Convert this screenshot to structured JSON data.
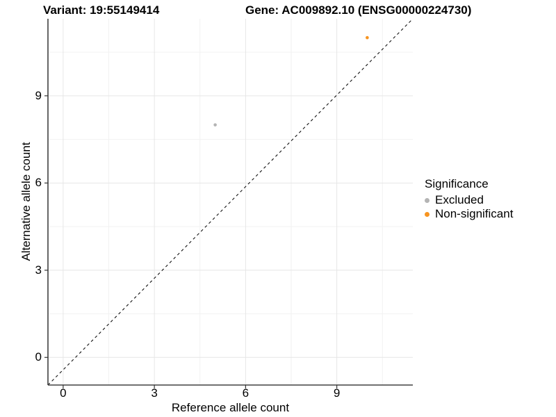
{
  "header": {
    "variant_title": "Variant: 19:55149414",
    "gene_title": "Gene: AC009892.10 (ENSG00000224730)"
  },
  "chart_data": {
    "type": "scatter",
    "title": "Variant: 19:55149414  Gene: AC009892.10 (ENSG00000224730)",
    "xlabel": "Reference allele count",
    "ylabel": "Alternative allele count",
    "xlim": [
      -0.5,
      11.5
    ],
    "ylim": [
      -0.95,
      11.65
    ],
    "x_ticks": [
      0,
      3,
      6,
      9
    ],
    "y_ticks": [
      0,
      3,
      6,
      9
    ],
    "x_minor_ticks": [
      1.5,
      4.5,
      7.5,
      10.5
    ],
    "y_minor_ticks": [
      1.5,
      4.5,
      7.5,
      10.5
    ],
    "grid": "major-and-minor",
    "points": [
      {
        "x": 5,
        "y": 8,
        "series": "Excluded",
        "color": "#B4B4B4"
      },
      {
        "x": 10,
        "y": 11,
        "series": "Non-significant",
        "color": "#F79420"
      }
    ],
    "reference_line": {
      "type": "identity",
      "equation": "y = x",
      "style": "dashed",
      "color": "#111111"
    },
    "legend": {
      "title": "Significance",
      "position": "right",
      "items": [
        {
          "label": "Excluded",
          "color": "#B4B4B4"
        },
        {
          "label": "Non-significant",
          "color": "#F79420"
        }
      ]
    }
  },
  "colors": {
    "background": "#FFFFFF",
    "axis": "#404040",
    "tick_mark": "#333333",
    "grid_major": "#E6E6E6",
    "grid_minor": "#F2F2F2",
    "text": "#000000"
  }
}
